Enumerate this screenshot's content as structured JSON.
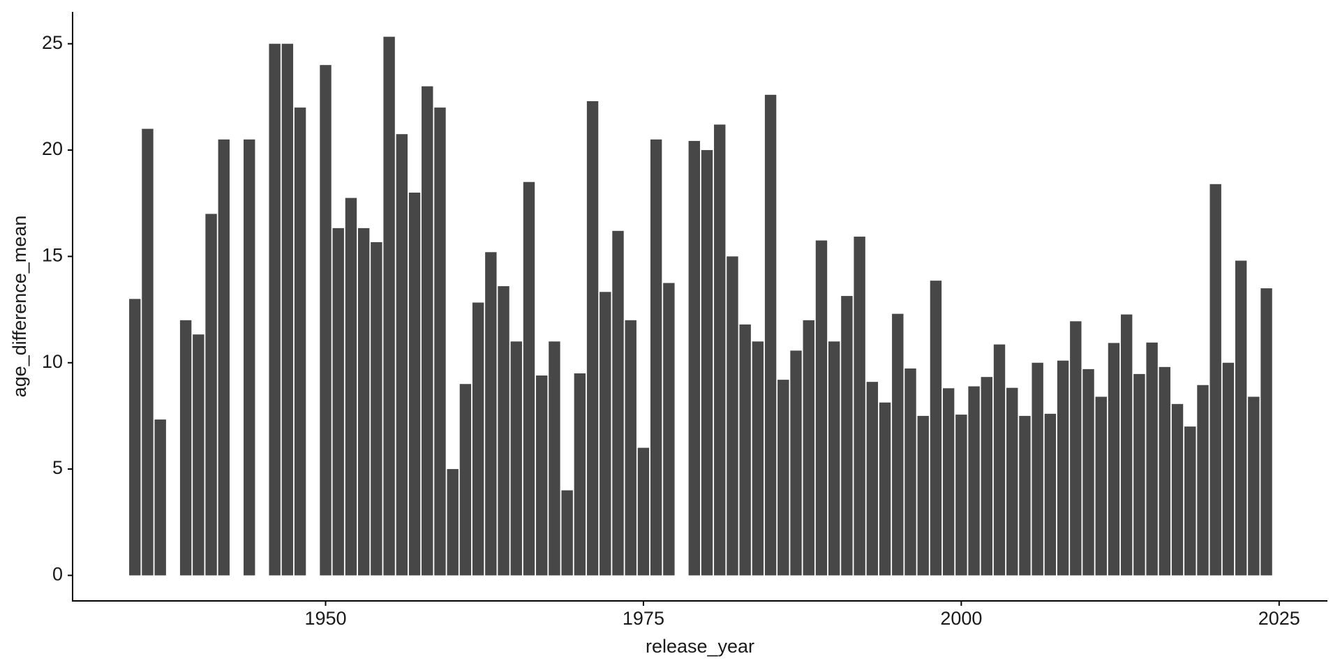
{
  "chart_data": {
    "type": "bar",
    "x_label": "release_year",
    "y_label": "age_difference_mean",
    "x": [
      1935,
      1936,
      1937,
      1939,
      1940,
      1941,
      1942,
      1944,
      1946,
      1947,
      1948,
      1950,
      1951,
      1952,
      1953,
      1954,
      1955,
      1956,
      1957,
      1958,
      1959,
      1960,
      1961,
      1962,
      1963,
      1964,
      1965,
      1966,
      1967,
      1968,
      1969,
      1970,
      1971,
      1972,
      1973,
      1974,
      1975,
      1976,
      1977,
      1979,
      1980,
      1981,
      1982,
      1983,
      1984,
      1985,
      1986,
      1987,
      1988,
      1989,
      1990,
      1991,
      1992,
      1993,
      1994,
      1995,
      1996,
      1997,
      1998,
      1999,
      2000,
      2001,
      2002,
      2003,
      2004,
      2005,
      2006,
      2007,
      2008,
      2009,
      2010,
      2011,
      2012,
      2013,
      2014,
      2015,
      2016,
      2017,
      2018,
      2019,
      2020,
      2021,
      2022,
      2023,
      2024
    ],
    "values": [
      13,
      21,
      7.33,
      12,
      11.33,
      17,
      20.5,
      20.5,
      25,
      25,
      22,
      24,
      16.33,
      17.75,
      16.33,
      15.67,
      25.33,
      20.75,
      18,
      23,
      22,
      5,
      9,
      12.83,
      15.2,
      13.6,
      11,
      18.5,
      9.4,
      11,
      4,
      9.5,
      22.3,
      13.33,
      16.2,
      12,
      6,
      20.5,
      13.75,
      20.43,
      20,
      21.2,
      15,
      11.8,
      11,
      22.6,
      9.2,
      10.57,
      12,
      15.75,
      11,
      13.14,
      15.93,
      9.1,
      8.13,
      12.3,
      9.73,
      7.5,
      13.86,
      8.8,
      7.56,
      8.89,
      9.33,
      10.86,
      8.82,
      7.5,
      10,
      7.6,
      10.1,
      11.95,
      9.7,
      8.4,
      10.93,
      12.27,
      9.47,
      10.95,
      9.8,
      8.06,
      7,
      8.95,
      18.4,
      10,
      14.8,
      8.4,
      13.5
    ],
    "color": "#474747",
    "xlim": [
      1930.1,
      2028.8
    ],
    "xticks": [
      1950,
      1975,
      2000,
      2025
    ],
    "ylim": [
      -1.2,
      26.5
    ],
    "yticks": [
      0,
      5,
      10,
      15,
      20,
      25
    ],
    "grid": false
  }
}
